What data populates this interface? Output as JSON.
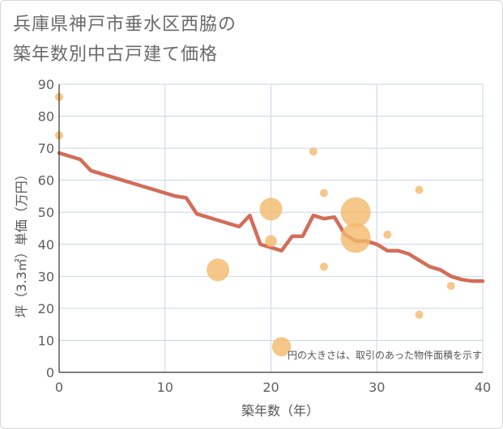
{
  "chart_data": {
    "type": "scatter",
    "title_lines": [
      "兵庫県神戸市垂水区西脇の",
      "築年数別中古戸建て価格"
    ],
    "xlabel": "築年数（年）",
    "ylabel": "坪（3.3㎡）単価（万円）",
    "xlim": [
      0,
      40
    ],
    "ylim": [
      0,
      90
    ],
    "xticks": [
      0,
      10,
      20,
      30,
      40
    ],
    "yticks": [
      0,
      10,
      20,
      30,
      40,
      50,
      60,
      70,
      80,
      90
    ],
    "grid": true,
    "note": "円の大きさは、取引のあった物件面積を示す",
    "colors": {
      "line": "#d36d58",
      "bubble": "#f3b96b",
      "grid": "#c9d6e6",
      "axis": "#333333"
    },
    "points": [
      {
        "x": 0,
        "y": 86,
        "size": 1
      },
      {
        "x": 0,
        "y": 74,
        "size": 1
      },
      {
        "x": 15,
        "y": 32,
        "size": 3
      },
      {
        "x": 20,
        "y": 51,
        "size": 3
      },
      {
        "x": 20,
        "y": 41,
        "size": 1.5
      },
      {
        "x": 21,
        "y": 8,
        "size": 2.5
      },
      {
        "x": 24,
        "y": 69,
        "size": 1
      },
      {
        "x": 25,
        "y": 56,
        "size": 1
      },
      {
        "x": 25,
        "y": 33,
        "size": 1
      },
      {
        "x": 28,
        "y": 50,
        "size": 4
      },
      {
        "x": 28,
        "y": 42,
        "size": 4
      },
      {
        "x": 31,
        "y": 43,
        "size": 1
      },
      {
        "x": 34,
        "y": 57,
        "size": 1
      },
      {
        "x": 34,
        "y": 18,
        "size": 1
      },
      {
        "x": 37,
        "y": 27,
        "size": 1
      }
    ],
    "trend": {
      "x": [
        0,
        1,
        2,
        3,
        4,
        5,
        6,
        7,
        8,
        9,
        10,
        11,
        12,
        13,
        14,
        15,
        16,
        17,
        18,
        19,
        20,
        21,
        22,
        23,
        24,
        25,
        26,
        27,
        28,
        29,
        30,
        31,
        32,
        33,
        34,
        35,
        36,
        37,
        38,
        39,
        40
      ],
      "y": [
        68.5,
        67.5,
        66.5,
        63,
        62,
        61,
        60,
        59,
        58,
        57,
        56,
        55,
        54.5,
        49.5,
        48.5,
        47.5,
        46.5,
        45.5,
        49,
        40,
        39,
        38,
        42.5,
        42.5,
        49,
        48,
        48.5,
        43,
        41,
        41,
        40,
        38,
        38,
        37,
        35,
        33,
        32,
        30,
        29,
        28.5,
        28.5
      ]
    }
  }
}
